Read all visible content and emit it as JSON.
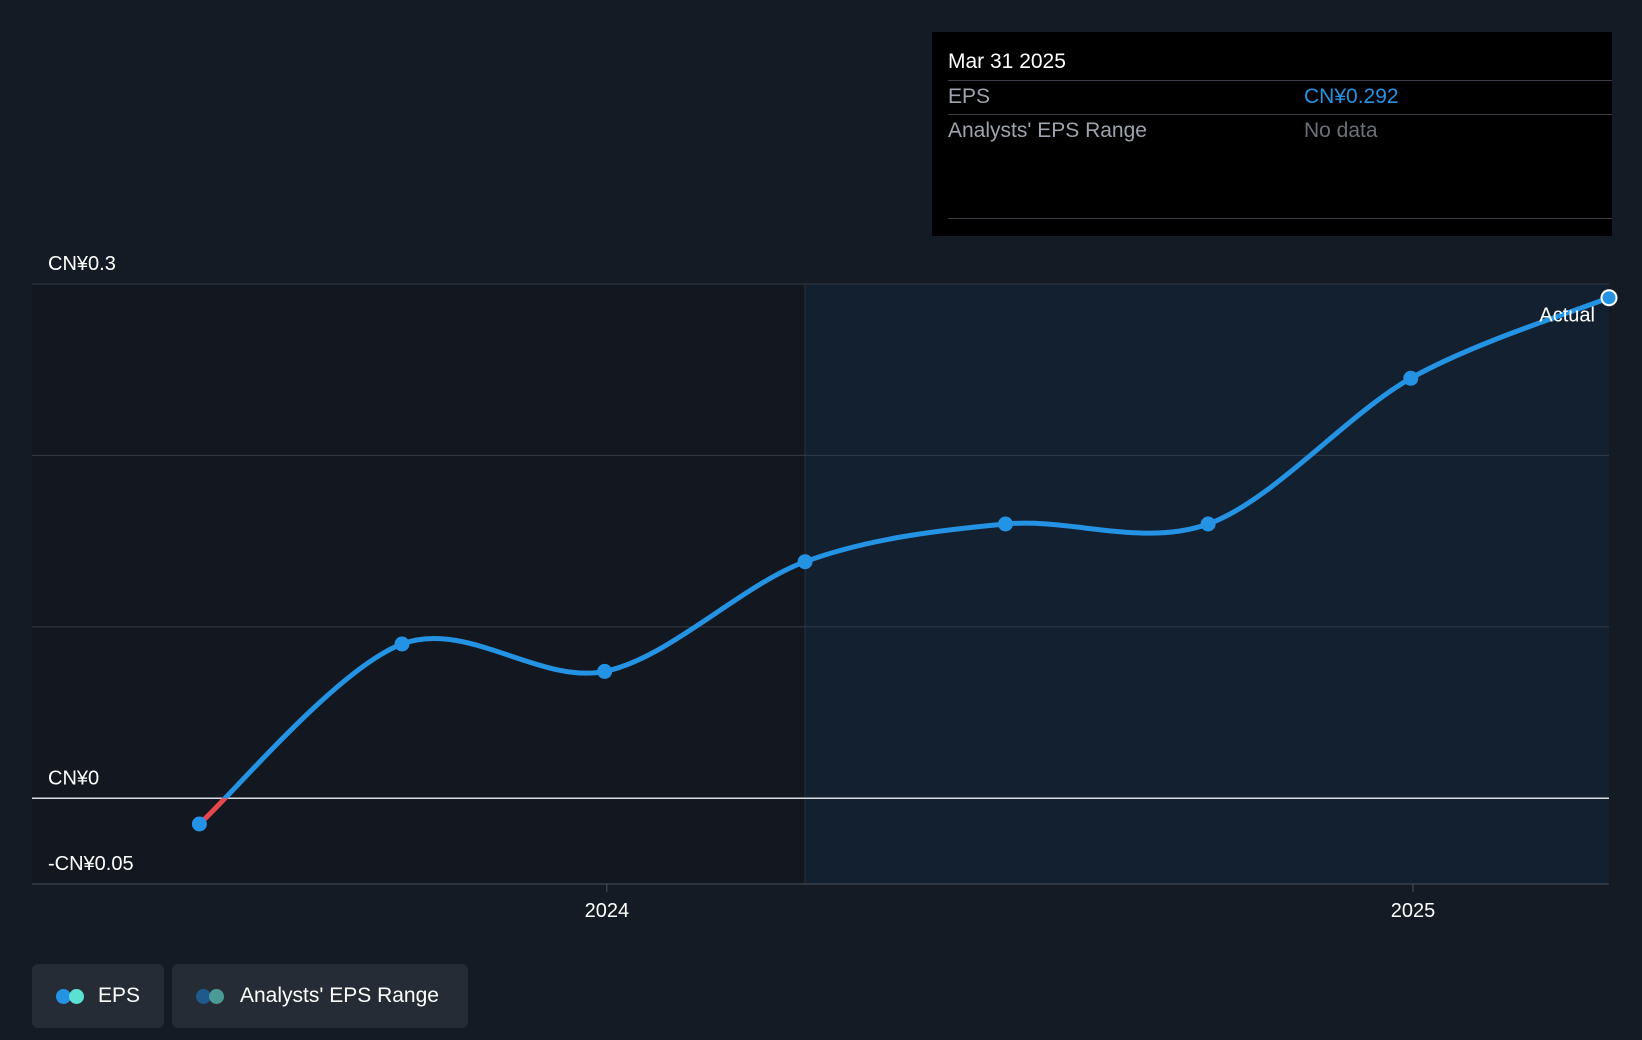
{
  "colors": {
    "background": "#151b24",
    "eps_line": "#2493e4",
    "negative_segment": "#e5474c",
    "future_region": "#13202f",
    "grid": "#333a44",
    "zero_line": "#d9dde2",
    "tooltip_value": "#2493e4",
    "tooltip_nodata": "#6b7079",
    "legend_eps_dot1": "#2493e4",
    "legend_eps_dot2": "#5ce0d3",
    "legend_range_dot1": "#1f5a8c",
    "legend_range_dot2": "#4a9a96"
  },
  "tooltip": {
    "date": "Mar 31 2025",
    "rows": [
      {
        "label": "EPS",
        "value": "CN¥0.292"
      },
      {
        "label": "Analysts' EPS Range",
        "value": "No data"
      }
    ]
  },
  "legend": {
    "items": [
      {
        "label": "EPS"
      },
      {
        "label": "Analysts' EPS Range"
      }
    ]
  },
  "chart_data": {
    "type": "line",
    "title": "",
    "xlabel": "",
    "ylabel": "",
    "ylim": [
      -0.05,
      0.3
    ],
    "y_tick_labels": [
      {
        "value": 0.3,
        "label": "CN¥0.3"
      },
      {
        "value": 0.0,
        "label": "CN¥0"
      },
      {
        "value": -0.05,
        "label": "-CN¥0.05"
      }
    ],
    "x_tick_labels": [
      {
        "value": "2024-01-01",
        "label": "2024"
      },
      {
        "value": "2025-01-01",
        "label": "2025"
      }
    ],
    "xlim": [
      "2023-04-15",
      "2025-03-31"
    ],
    "grid_values": [
      0.3,
      0.2,
      0.1,
      0.0
    ],
    "shaded_from": "2024-03-31",
    "annotation": {
      "text": "Actual",
      "x": "2025-03-31"
    },
    "series": [
      {
        "name": "EPS",
        "points": [
          {
            "x": "2023-06-30",
            "y": -0.015
          },
          {
            "x": "2023-09-30",
            "y": 0.09
          },
          {
            "x": "2023-12-31",
            "y": 0.074
          },
          {
            "x": "2024-03-31",
            "y": 0.138
          },
          {
            "x": "2024-06-30",
            "y": 0.16
          },
          {
            "x": "2024-09-30",
            "y": 0.16
          },
          {
            "x": "2024-12-31",
            "y": 0.245
          },
          {
            "x": "2025-03-31",
            "y": 0.292
          }
        ]
      }
    ]
  }
}
